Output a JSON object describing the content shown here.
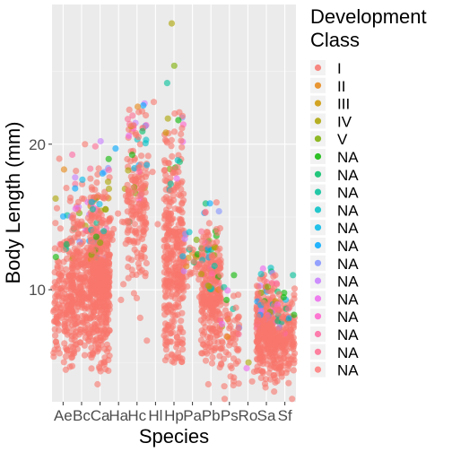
{
  "chart_data": {
    "type": "scatter",
    "subtype": "jitter-strip",
    "title": "",
    "xlabel": "Species",
    "ylabel": "Body Length (mm)",
    "ylim": [
      2.3,
      29.6
    ],
    "yticks": [
      10,
      20
    ],
    "grid": true,
    "legend_position": "right",
    "categories": [
      "Ae",
      "Bc",
      "Ca",
      "Ha",
      "Hc",
      "Hl",
      "Hp",
      "Pa",
      "Pb",
      "Ps",
      "Ro",
      "Sa",
      "Sf"
    ],
    "legend": {
      "title_lines": [
        "Development",
        "Class"
      ],
      "entries": [
        {
          "label": "I",
          "color": "#F8766D"
        },
        {
          "label": "II",
          "color": "#E68613"
        },
        {
          "label": "III",
          "color": "#CD9600"
        },
        {
          "label": "IV",
          "color": "#ABA300"
        },
        {
          "label": "V",
          "color": "#7CAE00"
        },
        {
          "label": "NA",
          "color": "#0CB702"
        },
        {
          "label": "NA",
          "color": "#00BE67"
        },
        {
          "label": "NA",
          "color": "#00C19A"
        },
        {
          "label": "NA",
          "color": "#00BFC4"
        },
        {
          "label": "NA",
          "color": "#00B8E7"
        },
        {
          "label": "NA",
          "color": "#00A9FF"
        },
        {
          "label": "NA",
          "color": "#8494FF"
        },
        {
          "label": "NA",
          "color": "#C77CFF"
        },
        {
          "label": "NA",
          "color": "#ED68ED"
        },
        {
          "label": "NA",
          "color": "#FF61CC"
        },
        {
          "label": "NA",
          "color": "#FF68A1"
        },
        {
          "label": "NA",
          "color": "#FF6C91"
        },
        {
          "label": "NA",
          "color": "#FF7B7B"
        }
      ]
    },
    "series": [
      {
        "category": "Ae",
        "n": 180,
        "min": 4.5,
        "max": 19.0,
        "median": 8.0
      },
      {
        "category": "Bc",
        "n": 260,
        "min": 5.5,
        "max": 20.0,
        "median": 9.0
      },
      {
        "category": "Ca",
        "n": 500,
        "min": 3.5,
        "max": 20.2,
        "median": 9.5
      },
      {
        "category": "Ha",
        "n": 14,
        "min": 9.3,
        "max": 19.7,
        "median": 13.5
      },
      {
        "category": "Hc",
        "n": 200,
        "min": 6.5,
        "max": 22.8,
        "median": 14.5
      },
      {
        "category": "Hl",
        "n": 4,
        "min": 14.5,
        "max": 22.9,
        "median": 18.0
      },
      {
        "category": "Hp",
        "n": 360,
        "min": 5.0,
        "max": 28.3,
        "median": 10.0
      },
      {
        "category": "Pa",
        "n": 40,
        "min": 8.5,
        "max": 14.0,
        "median": 11.5
      },
      {
        "category": "Pb",
        "n": 300,
        "min": 3.5,
        "max": 16.0,
        "median": 8.5
      },
      {
        "category": "Ps",
        "n": 70,
        "min": 2.5,
        "max": 11.0,
        "median": 6.0
      },
      {
        "category": "Ro",
        "n": 4,
        "min": 3.7,
        "max": 5.0,
        "median": 4.3
      },
      {
        "category": "Sa",
        "n": 350,
        "min": 3.0,
        "max": 11.5,
        "median": 6.5
      },
      {
        "category": "Sf",
        "n": 180,
        "min": 2.5,
        "max": 11.0,
        "median": 6.0
      }
    ]
  }
}
